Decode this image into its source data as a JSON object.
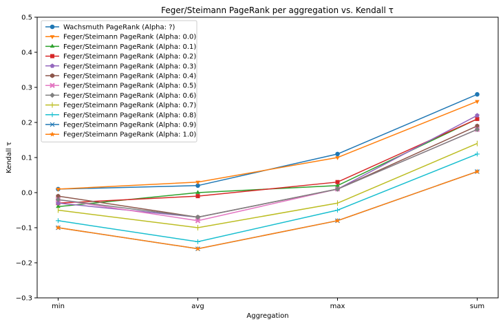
{
  "chart_data": {
    "type": "line",
    "title": "Feger/Steimann PageRank per aggregation vs. Kendall τ",
    "xlabel": "Aggregation",
    "ylabel": "Kendall τ",
    "categories": [
      "min",
      "avg",
      "max",
      "sum"
    ],
    "ylim": [
      -0.3,
      0.5
    ],
    "yticks": [
      "−0.3",
      "−0.2",
      "−0.1",
      "0.0",
      "0.1",
      "0.2",
      "0.3",
      "0.4",
      "0.5"
    ],
    "ytick_values": [
      -0.3,
      -0.2,
      -0.1,
      0.0,
      0.1,
      0.2,
      0.3,
      0.4,
      0.5
    ],
    "grid": false,
    "legend_position": "top-left",
    "series": [
      {
        "name": "Wachsmuth PageRank (Alpha: ?)",
        "values": [
          0.01,
          0.02,
          0.11,
          0.28
        ],
        "color": "#1f77b4",
        "marker": "circle"
      },
      {
        "name": "Feger/Steimann PageRank (Alpha: 0.0)",
        "values": [
          0.01,
          0.03,
          0.1,
          0.26
        ],
        "color": "#ff7f0e",
        "marker": "triangle-down"
      },
      {
        "name": "Feger/Steimann PageRank (Alpha: 0.1)",
        "values": [
          -0.04,
          0.0,
          0.02,
          0.21
        ],
        "color": "#2ca02c",
        "marker": "triangle-up"
      },
      {
        "name": "Feger/Steimann PageRank (Alpha: 0.2)",
        "values": [
          -0.03,
          -0.01,
          0.03,
          0.21
        ],
        "color": "#d62728",
        "marker": "square"
      },
      {
        "name": "Feger/Steimann PageRank (Alpha: 0.3)",
        "values": [
          -0.03,
          -0.07,
          0.01,
          0.22
        ],
        "color": "#9467bd",
        "marker": "pentagon"
      },
      {
        "name": "Feger/Steimann PageRank (Alpha: 0.4)",
        "values": [
          -0.01,
          -0.07,
          0.01,
          0.19
        ],
        "color": "#8c564b",
        "marker": "hexagon"
      },
      {
        "name": "Feger/Steimann PageRank (Alpha: 0.5)",
        "values": [
          -0.02,
          -0.08,
          0.01,
          0.18
        ],
        "color": "#e377c2",
        "marker": "x-thick"
      },
      {
        "name": "Feger/Steimann PageRank (Alpha: 0.6)",
        "values": [
          -0.02,
          -0.07,
          0.01,
          0.18
        ],
        "color": "#7f7f7f",
        "marker": "diamond"
      },
      {
        "name": "Feger/Steimann PageRank (Alpha: 0.7)",
        "values": [
          -0.05,
          -0.1,
          -0.03,
          0.14
        ],
        "color": "#bcbd22",
        "marker": "vline"
      },
      {
        "name": "Feger/Steimann PageRank (Alpha: 0.8)",
        "values": [
          -0.08,
          -0.14,
          -0.05,
          0.11
        ],
        "color": "#17becf",
        "marker": "plus"
      },
      {
        "name": "Feger/Steimann PageRank (Alpha: 0.9)",
        "values": [
          -0.1,
          -0.16,
          -0.08,
          0.06
        ],
        "color": "#1f77b4",
        "marker": "x"
      },
      {
        "name": "Feger/Steimann PageRank (Alpha: 1.0)",
        "values": [
          -0.1,
          -0.16,
          -0.08,
          0.06
        ],
        "color": "#ff7f0e",
        "marker": "star"
      }
    ]
  }
}
